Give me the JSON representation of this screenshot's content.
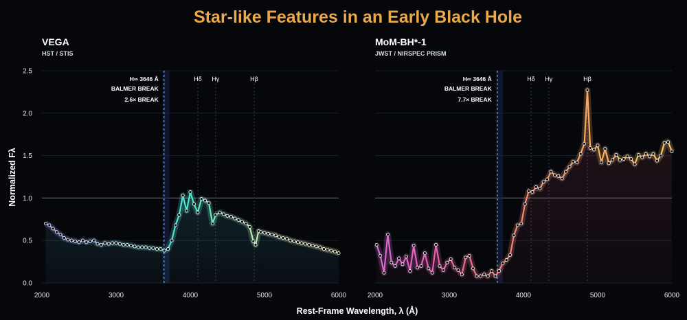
{
  "title": "Star-like Features in an Early Black Hole",
  "axes": {
    "xlabel": "Rest-Frame Wavelength, λ (Å)",
    "ylabel": "Normalized Fλ",
    "x_ticks": [
      "2000",
      "3000",
      "4000",
      "5000",
      "6000"
    ],
    "y_ticks": [
      "0.0",
      "0.5",
      "1.0",
      "1.5",
      "2.0",
      "2.5"
    ]
  },
  "colors": {
    "title": "#e9a84a",
    "background": "#05070b",
    "break_line": "#6fb6ff",
    "vega_gradient": [
      "#a877f0",
      "#5fd0e8",
      "#4de8d0",
      "#c8eeb0",
      "#f2e27a"
    ],
    "mom_gradient": [
      "#d86ad8",
      "#e860b0",
      "#f57b7b",
      "#f59a6a",
      "#f7b65a",
      "#f7c96a"
    ]
  },
  "panels": [
    {
      "name": "VEGA",
      "subtitle": "HST / STIS",
      "annotations": [
        "H∞ 3646 Å",
        "BALMER BREAK",
        "2.6× BREAK"
      ],
      "lines": [
        "Hδ",
        "Hγ",
        "Hβ"
      ]
    },
    {
      "name": "MoM-BH*-1",
      "subtitle": "JWST / NIRSPEC PRISM",
      "annotations": [
        "H∞ 3646 Å",
        "BALMER BREAK",
        "7.7× BREAK"
      ],
      "lines": [
        "Hδ",
        "Hγ",
        "Hβ"
      ]
    }
  ],
  "chart_data": [
    {
      "type": "line",
      "title": "VEGA",
      "subtitle": "HST / STIS",
      "xlabel": "Rest-Frame Wavelength, λ (Å)",
      "ylabel": "Normalized Fλ",
      "xlim": [
        2000,
        6000
      ],
      "ylim": [
        0,
        2.5
      ],
      "grid": true,
      "reference_lines": {
        "y": 1.0,
        "balmer_break_x": 3646,
        "hdelta_x": 4102,
        "hgamma_x": 4341,
        "hbeta_x": 4861
      },
      "series": [
        {
          "x": [
            2050,
            2100,
            2150,
            2200,
            2250,
            2300,
            2350,
            2400,
            2450,
            2500,
            2550,
            2600,
            2650,
            2700,
            2750,
            2800,
            2850,
            2900,
            2950,
            3000,
            3050,
            3100,
            3150,
            3200,
            3250,
            3300,
            3350,
            3400,
            3450,
            3500,
            3550,
            3600,
            3650,
            3700,
            3750,
            3800,
            3850,
            3900,
            3950,
            4000,
            4050,
            4100,
            4150,
            4200,
            4250,
            4300,
            4340,
            4400,
            4450,
            4500,
            4550,
            4600,
            4650,
            4700,
            4750,
            4800,
            4850,
            4880,
            4920,
            4950,
            5000,
            5050,
            5100,
            5150,
            5200,
            5250,
            5300,
            5350,
            5400,
            5450,
            5500,
            5550,
            5600,
            5650,
            5700,
            5750,
            5800,
            5850,
            5900,
            5950,
            6000
          ],
          "y": [
            0.7,
            0.68,
            0.64,
            0.6,
            0.57,
            0.53,
            0.51,
            0.5,
            0.49,
            0.48,
            0.5,
            0.48,
            0.49,
            0.5,
            0.46,
            0.45,
            0.47,
            0.46,
            0.47,
            0.47,
            0.46,
            0.45,
            0.45,
            0.44,
            0.43,
            0.42,
            0.42,
            0.42,
            0.41,
            0.41,
            0.4,
            0.4,
            0.38,
            0.4,
            0.5,
            0.68,
            0.8,
            1.03,
            0.85,
            1.07,
            0.93,
            0.83,
            0.99,
            0.97,
            0.94,
            0.7,
            0.8,
            0.83,
            0.81,
            0.79,
            0.78,
            0.76,
            0.74,
            0.72,
            0.7,
            0.66,
            0.49,
            0.45,
            0.61,
            0.6,
            0.59,
            0.58,
            0.57,
            0.56,
            0.54,
            0.53,
            0.52,
            0.5,
            0.49,
            0.48,
            0.47,
            0.46,
            0.45,
            0.44,
            0.43,
            0.42,
            0.4,
            0.39,
            0.38,
            0.37,
            0.35
          ]
        }
      ]
    },
    {
      "type": "line",
      "title": "MoM-BH*-1",
      "subtitle": "JWST / NIRSPEC PRISM",
      "xlabel": "Rest-Frame Wavelength, λ (Å)",
      "ylabel": "Normalized Fλ",
      "xlim": [
        2000,
        6000
      ],
      "ylim": [
        0,
        2.5
      ],
      "grid": true,
      "reference_lines": {
        "y": 1.0,
        "balmer_break_x": 3646,
        "hdelta_x": 4102,
        "hgamma_x": 4341,
        "hbeta_x": 4861
      },
      "series": [
        {
          "x": [
            2020,
            2070,
            2120,
            2170,
            2220,
            2270,
            2320,
            2370,
            2420,
            2470,
            2520,
            2570,
            2620,
            2670,
            2720,
            2770,
            2820,
            2870,
            2920,
            2970,
            3020,
            3070,
            3120,
            3170,
            3220,
            3270,
            3320,
            3370,
            3420,
            3470,
            3520,
            3570,
            3620,
            3670,
            3720,
            3770,
            3820,
            3870,
            3920,
            3970,
            4020,
            4070,
            4120,
            4170,
            4220,
            4270,
            4320,
            4370,
            4420,
            4470,
            4520,
            4570,
            4620,
            4670,
            4720,
            4770,
            4820,
            4861,
            4900,
            4950,
            5000,
            5050,
            5100,
            5150,
            5200,
            5250,
            5300,
            5350,
            5400,
            5450,
            5500,
            5550,
            5600,
            5650,
            5700,
            5750,
            5800,
            5850,
            5900,
            5950,
            6000
          ],
          "y": [
            0.45,
            0.32,
            0.12,
            0.57,
            0.24,
            0.2,
            0.29,
            0.22,
            0.31,
            0.14,
            0.44,
            0.18,
            0.2,
            0.35,
            0.17,
            0.12,
            0.45,
            0.2,
            0.15,
            0.24,
            0.28,
            0.18,
            0.15,
            0.1,
            0.3,
            0.32,
            0.17,
            0.08,
            0.08,
            0.1,
            0.08,
            0.14,
            0.08,
            0.14,
            0.23,
            0.27,
            0.33,
            0.56,
            0.68,
            0.7,
            0.93,
            1.08,
            1.07,
            1.13,
            1.11,
            1.19,
            1.22,
            1.31,
            1.27,
            1.26,
            1.23,
            1.31,
            1.37,
            1.43,
            1.42,
            1.52,
            1.64,
            2.27,
            1.59,
            1.57,
            1.62,
            1.42,
            1.58,
            1.41,
            1.45,
            1.51,
            1.45,
            1.46,
            1.49,
            1.46,
            1.4,
            1.51,
            1.48,
            1.52,
            1.49,
            1.52,
            1.44,
            1.5,
            1.65,
            1.66,
            1.55
          ]
        }
      ]
    }
  ]
}
